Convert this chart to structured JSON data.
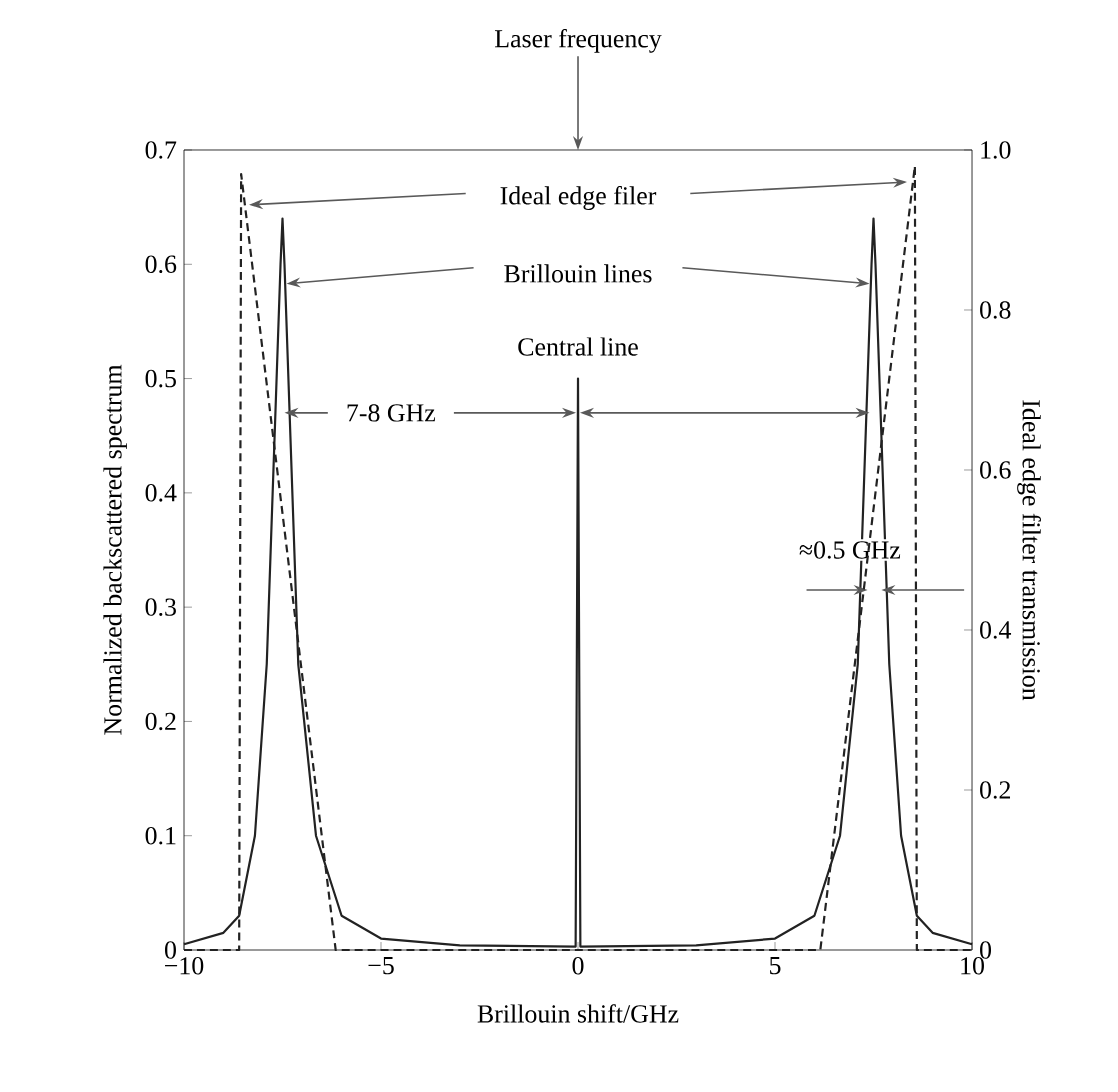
{
  "chart_data": {
    "type": "line",
    "xlabel": "Brillouin shift/GHz",
    "ylabel": "Normalized backscattered spectrum",
    "y2label": "Ideal edge filter transmission",
    "xlim": [
      -10,
      10
    ],
    "ylim": [
      0,
      0.7
    ],
    "y2lim": [
      0,
      1.0
    ],
    "xticks": [
      {
        "value": -10,
        "label": "−10"
      },
      {
        "value": -5,
        "label": "−5"
      },
      0,
      5,
      10
    ],
    "yticks": [
      0,
      0.1,
      0.2,
      0.3,
      0.4,
      0.5,
      0.6,
      0.7
    ],
    "y2ticks": [
      0,
      0.2,
      0.4,
      0.6,
      0.8,
      {
        "value": 1,
        "label": "1.0"
      }
    ],
    "series": [
      {
        "color": "#222222",
        "line_style": "solid",
        "x": [
          -10,
          -9,
          -8.6,
          -8.2,
          -7.9,
          -7.7,
          -7.55,
          -7.5,
          -7.45,
          -7.3,
          -7.1,
          -6.65,
          -6,
          -5,
          -3,
          -0.06,
          0,
          0.06,
          3,
          5,
          6,
          6.65,
          7.1,
          7.3,
          7.45,
          7.5,
          7.55,
          7.7,
          7.9,
          8.2,
          8.6,
          9,
          10
        ],
        "values": [
          0.005,
          0.015,
          0.03,
          0.1,
          0.25,
          0.45,
          0.6,
          0.64,
          0.6,
          0.45,
          0.25,
          0.1,
          0.03,
          0.01,
          0.004,
          0.003,
          0.5,
          0.003,
          0.004,
          0.01,
          0.03,
          0.1,
          0.25,
          0.45,
          0.6,
          0.64,
          0.6,
          0.45,
          0.25,
          0.1,
          0.03,
          0.015,
          0.005
        ]
      },
      {
        "color": "#222222",
        "line_style": "dashed",
        "axis": "y2",
        "x": [
          -10,
          -8.6,
          -8.55,
          -6.15,
          6.15,
          8.55,
          8.6,
          10
        ],
        "values": [
          0,
          0,
          0.97,
          0,
          0,
          0.98,
          0,
          0
        ]
      }
    ],
    "annotations": [
      "Laser frequency",
      "Ideal edge filer",
      {
        "text": "Brillouin lines",
        "x": 7.4,
        "y": 0.583
      },
      "Central line",
      {
        "text": "7-8 GHz",
        "x": -7.45,
        "y": 0.47
      },
      "≈0.5 GHz"
    ]
  }
}
